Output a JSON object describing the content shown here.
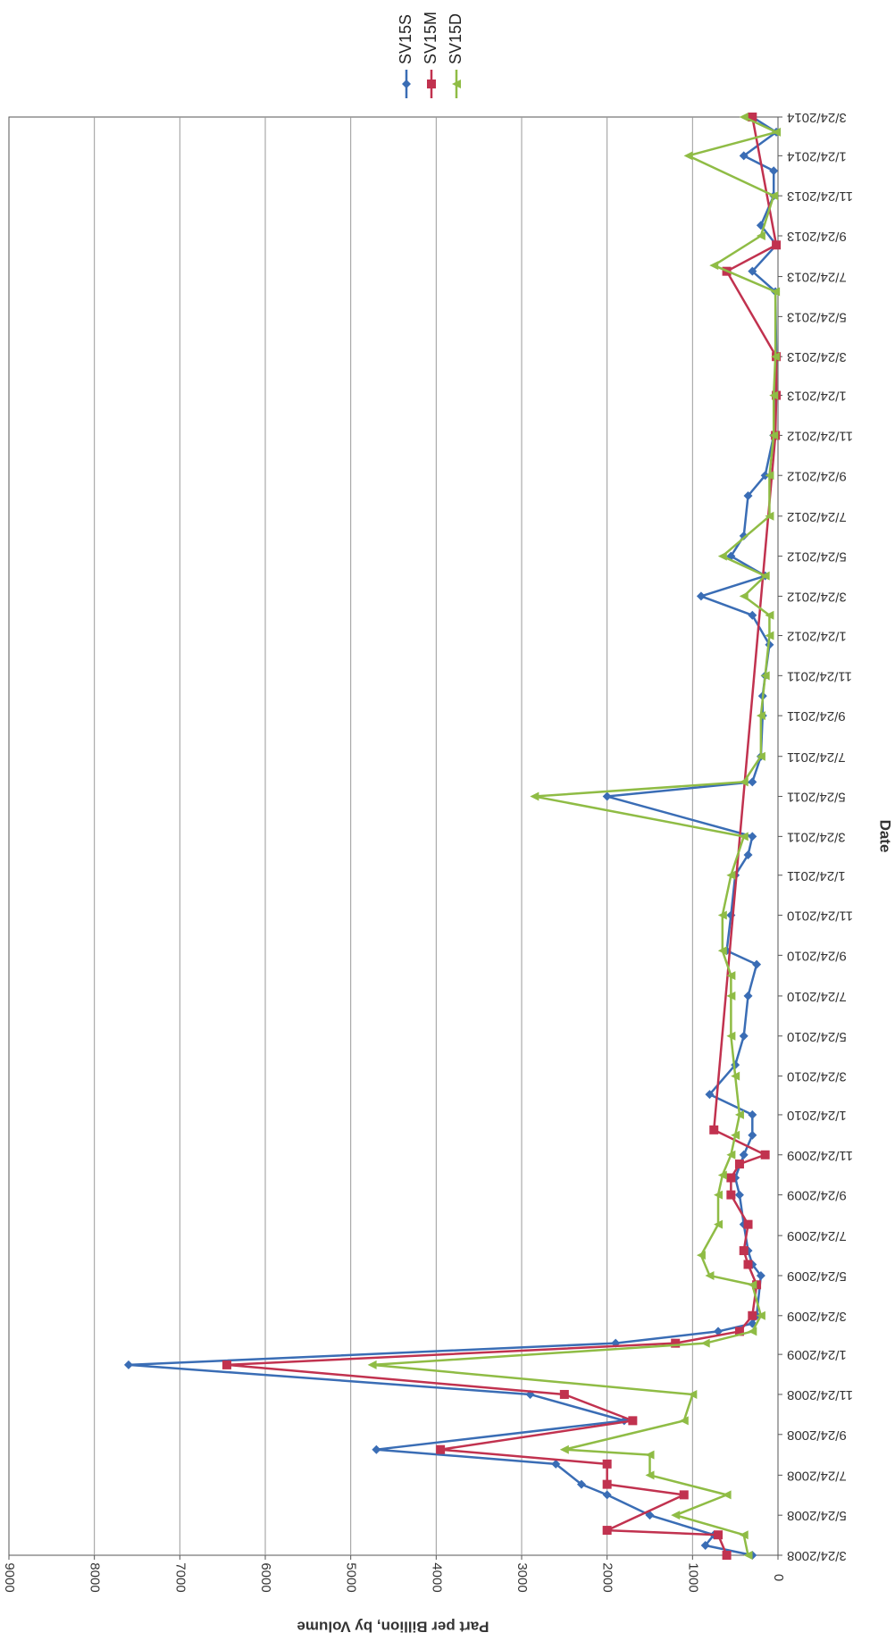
{
  "chart_data": {
    "type": "line",
    "orientation": "rotated 90 degrees clockwise (date axis vertical on the right, value axis horizontal along the bottom)",
    "xlabel": "Date",
    "ylabel": "Part per Billion, by Volume",
    "ylim": [
      0,
      9000
    ],
    "y_ticks": [
      "0",
      "1000",
      "2000",
      "3000",
      "4000",
      "5000",
      "6000",
      "7000",
      "8000",
      "9000"
    ],
    "x_tick_labels": [
      "3/24/2008",
      "5/24/2008",
      "7/24/2008",
      "9/24/2008",
      "11/24/2008",
      "1/24/2009",
      "3/24/2009",
      "5/24/2009",
      "7/24/2009",
      "9/24/2009",
      "11/24/2009",
      "1/24/2010",
      "3/24/2010",
      "5/24/2010",
      "7/24/2010",
      "9/24/2010",
      "11/24/2010",
      "1/24/2011",
      "3/24/2011",
      "5/24/2011",
      "7/24/2011",
      "9/24/2011",
      "11/24/2011",
      "1/24/2012",
      "3/24/2012",
      "5/24/2012",
      "7/24/2012",
      "9/24/2012",
      "11/24/2012",
      "1/24/2013",
      "3/24/2013",
      "5/24/2013",
      "7/24/2013",
      "9/24/2013",
      "11/24/2013",
      "1/24/2014",
      "3/24/2014"
    ],
    "grid": true,
    "legend_position": "top, rotated",
    "series": [
      {
        "name": "SV15S",
        "color": "#3a6db5",
        "marker": "diamond",
        "points": [
          [
            "2008-03-24",
            300
          ],
          [
            "2008-04-08",
            850
          ],
          [
            "2008-04-24",
            750
          ],
          [
            "2008-05-24",
            1500
          ],
          [
            "2008-06-24",
            2000
          ],
          [
            "2008-07-10",
            2300
          ],
          [
            "2008-08-10",
            2600
          ],
          [
            "2008-09-01",
            4700
          ],
          [
            "2008-10-15",
            1800
          ],
          [
            "2008-11-24",
            2900
          ],
          [
            "2009-01-08",
            7600
          ],
          [
            "2009-02-10",
            1900
          ],
          [
            "2009-02-28",
            700
          ],
          [
            "2009-03-12",
            300
          ],
          [
            "2009-03-24",
            250
          ],
          [
            "2009-05-24",
            200
          ],
          [
            "2009-06-10",
            300
          ],
          [
            "2009-07-01",
            350
          ],
          [
            "2009-08-10",
            400
          ],
          [
            "2009-09-24",
            450
          ],
          [
            "2009-10-20",
            500
          ],
          [
            "2009-11-24",
            400
          ],
          [
            "2009-12-24",
            300
          ],
          [
            "2010-01-24",
            300
          ],
          [
            "2010-02-24",
            800
          ],
          [
            "2010-04-10",
            500
          ],
          [
            "2010-05-24",
            400
          ],
          [
            "2010-07-24",
            350
          ],
          [
            "2010-09-10",
            250
          ],
          [
            "2010-10-01",
            600
          ],
          [
            "2010-11-24",
            550
          ],
          [
            "2011-01-24",
            500
          ],
          [
            "2011-02-24",
            350
          ],
          [
            "2011-03-24",
            300
          ],
          [
            "2011-05-24",
            2000
          ],
          [
            "2011-06-15",
            300
          ],
          [
            "2011-07-24",
            200
          ],
          [
            "2011-09-24",
            180
          ],
          [
            "2011-10-24",
            180
          ],
          [
            "2011-11-24",
            150
          ],
          [
            "2012-01-10",
            100
          ],
          [
            "2012-02-24",
            300
          ],
          [
            "2012-03-24",
            900
          ],
          [
            "2012-04-24",
            150
          ],
          [
            "2012-05-24",
            550
          ],
          [
            "2012-06-24",
            400
          ],
          [
            "2012-08-24",
            350
          ],
          [
            "2012-09-24",
            150
          ],
          [
            "2012-11-24",
            50
          ],
          [
            "2013-01-24",
            30
          ],
          [
            "2013-03-24",
            20
          ],
          [
            "2013-07-01",
            30
          ],
          [
            "2013-08-01",
            300
          ],
          [
            "2013-09-10",
            20
          ],
          [
            "2013-10-10",
            200
          ],
          [
            "2013-11-24",
            50
          ],
          [
            "2014-01-01",
            50
          ],
          [
            "2014-01-24",
            400
          ],
          [
            "2014-03-01",
            20
          ],
          [
            "2014-03-24",
            300
          ]
        ]
      },
      {
        "name": "SV15M",
        "color": "#c1324f",
        "marker": "square",
        "points": [
          [
            "2008-03-24",
            600
          ],
          [
            "2008-04-24",
            700
          ],
          [
            "2008-05-01",
            2000
          ],
          [
            "2008-06-24",
            1100
          ],
          [
            "2008-07-10",
            2000
          ],
          [
            "2008-08-10",
            2000
          ],
          [
            "2008-09-01",
            3950
          ],
          [
            "2008-10-15",
            1700
          ],
          [
            "2008-11-24",
            2500
          ],
          [
            "2009-01-08",
            6450
          ],
          [
            "2009-02-10",
            1200
          ],
          [
            "2009-02-28",
            450
          ],
          [
            "2009-03-24",
            300
          ],
          [
            "2009-05-10",
            250
          ],
          [
            "2009-06-10",
            350
          ],
          [
            "2009-07-01",
            400
          ],
          [
            "2009-08-10",
            350
          ],
          [
            "2009-09-24",
            550
          ],
          [
            "2009-10-20",
            550
          ],
          [
            "2009-11-10",
            450
          ],
          [
            "2009-11-24",
            150
          ],
          [
            "2010-01-01",
            750
          ],
          [
            "2012-11-24",
            30
          ],
          [
            "2013-01-24",
            20
          ],
          [
            "2013-03-24",
            20
          ],
          [
            "2013-08-01",
            600
          ],
          [
            "2013-09-10",
            20
          ],
          [
            "2014-03-24",
            300
          ]
        ]
      },
      {
        "name": "SV15D",
        "color": "#8fbc45",
        "marker": "triangle",
        "points": [
          [
            "2008-03-24",
            350
          ],
          [
            "2008-04-24",
            400
          ],
          [
            "2008-05-24",
            1200
          ],
          [
            "2008-06-24",
            600
          ],
          [
            "2008-07-24",
            1500
          ],
          [
            "2008-08-24",
            1500
          ],
          [
            "2008-09-01",
            2500
          ],
          [
            "2008-10-15",
            1100
          ],
          [
            "2008-11-24",
            1000
          ],
          [
            "2009-01-08",
            4750
          ],
          [
            "2009-02-10",
            850
          ],
          [
            "2009-02-28",
            300
          ],
          [
            "2009-03-24",
            200
          ],
          [
            "2009-05-10",
            300
          ],
          [
            "2009-05-24",
            800
          ],
          [
            "2009-06-24",
            900
          ],
          [
            "2009-08-10",
            700
          ],
          [
            "2009-09-24",
            700
          ],
          [
            "2009-10-24",
            650
          ],
          [
            "2009-11-24",
            550
          ],
          [
            "2009-12-24",
            500
          ],
          [
            "2010-01-24",
            450
          ],
          [
            "2010-03-24",
            500
          ],
          [
            "2010-05-24",
            550
          ],
          [
            "2010-07-24",
            550
          ],
          [
            "2010-08-24",
            550
          ],
          [
            "2010-10-01",
            650
          ],
          [
            "2010-11-24",
            650
          ],
          [
            "2011-01-24",
            550
          ],
          [
            "2011-03-24",
            400
          ],
          [
            "2011-05-24",
            2850
          ],
          [
            "2011-06-15",
            400
          ],
          [
            "2011-07-24",
            200
          ],
          [
            "2011-09-24",
            200
          ],
          [
            "2011-11-24",
            150
          ],
          [
            "2012-01-24",
            100
          ],
          [
            "2012-02-24",
            100
          ],
          [
            "2012-03-24",
            400
          ],
          [
            "2012-04-24",
            150
          ],
          [
            "2012-05-24",
            650
          ],
          [
            "2012-07-24",
            100
          ],
          [
            "2012-09-24",
            100
          ],
          [
            "2012-11-24",
            50
          ],
          [
            "2013-01-24",
            50
          ],
          [
            "2013-03-24",
            30
          ],
          [
            "2013-07-01",
            30
          ],
          [
            "2013-08-10",
            750
          ],
          [
            "2013-09-24",
            200
          ],
          [
            "2013-11-24",
            50
          ],
          [
            "2014-01-24",
            1050
          ],
          [
            "2014-03-01",
            20
          ],
          [
            "2014-03-24",
            400
          ]
        ]
      }
    ]
  }
}
